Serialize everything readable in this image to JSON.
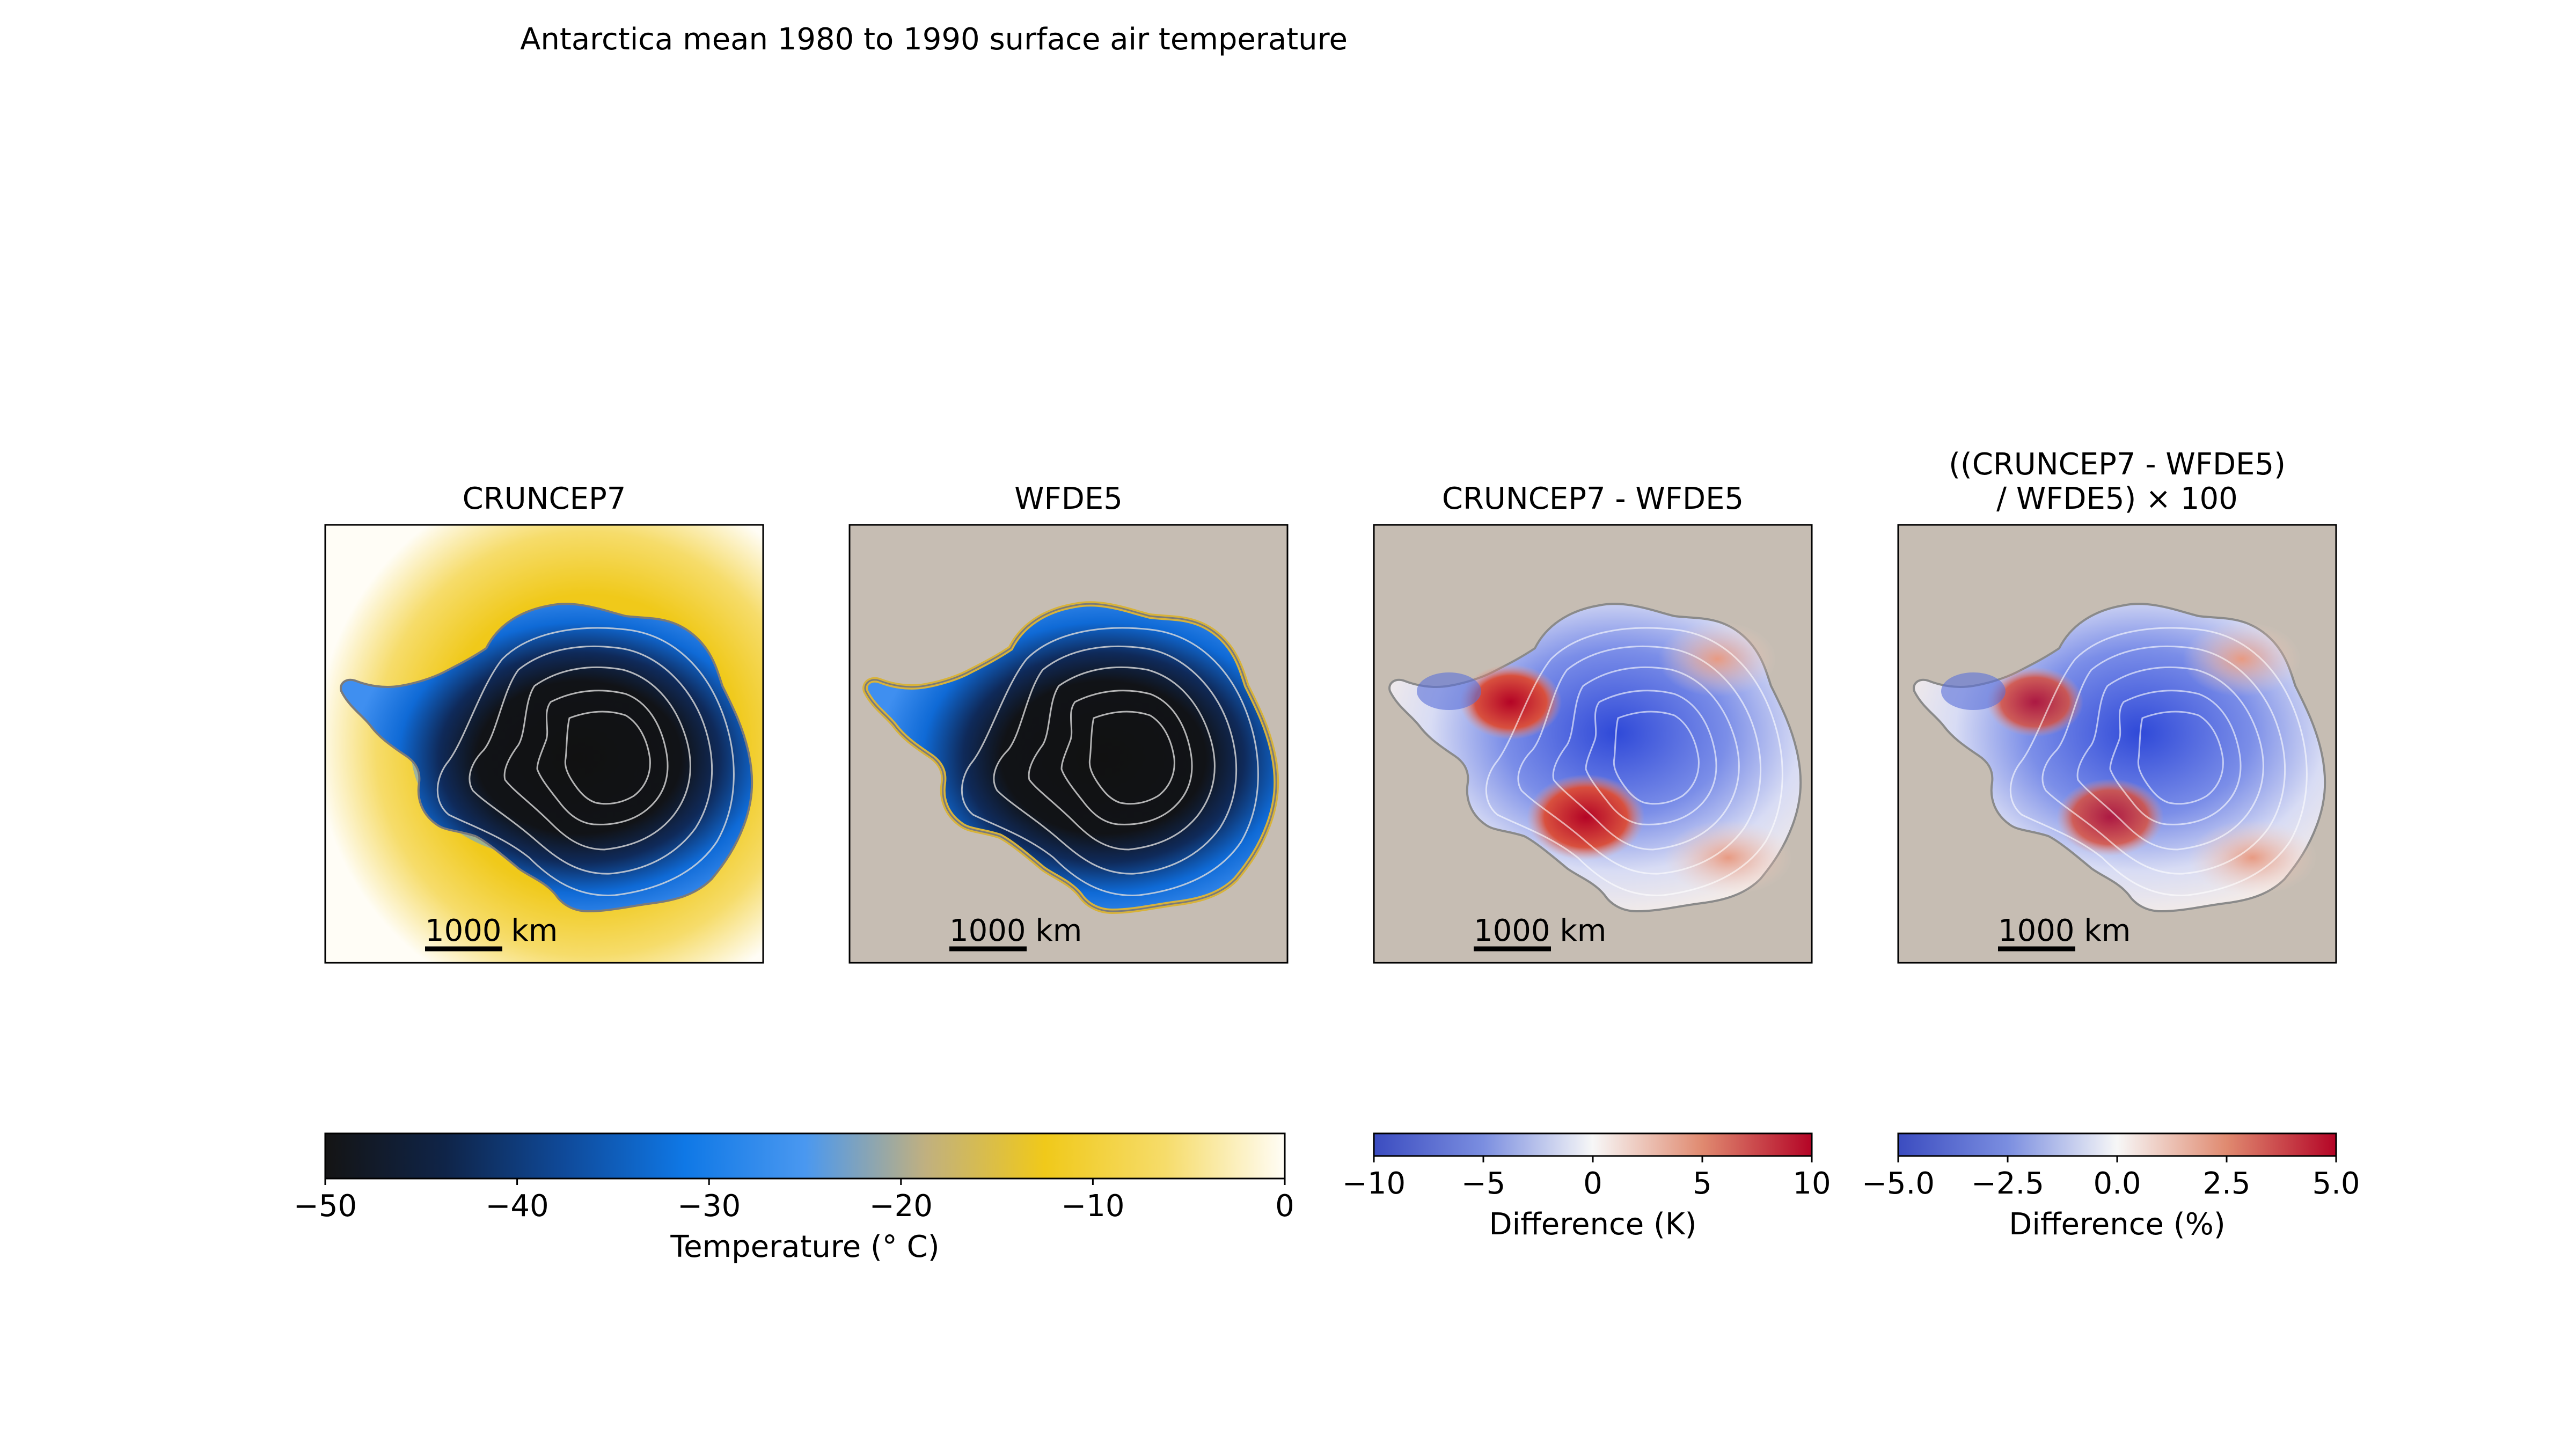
{
  "figure": {
    "title": "Antarctica mean 1980 to 1990 surface air temperature"
  },
  "panels": [
    {
      "id": "cruncep7",
      "title_lines": [
        "CRUNCEP7"
      ],
      "scalebar_label": "1000 km",
      "background": "#fbf8f0",
      "style": "temp-cruncep"
    },
    {
      "id": "wfde5",
      "title_lines": [
        "WFDE5"
      ],
      "scalebar_label": "1000 km",
      "background": "#c6bdb3",
      "style": "temp-wfde"
    },
    {
      "id": "diff",
      "title_lines": [
        "CRUNCEP7 - WFDE5"
      ],
      "scalebar_label": "1000 km",
      "background": "#c6bdb3",
      "style": "diff"
    },
    {
      "id": "pct",
      "title_lines": [
        "((CRUNCEP7 - WFDE5)",
        "/ WFDE5) × 100"
      ],
      "scalebar_label": "1000 km",
      "background": "#c6bdb3",
      "style": "pct"
    }
  ],
  "colorbars": [
    {
      "id": "temperature",
      "label": "Temperature (° C)",
      "range": [
        -50,
        0
      ],
      "ticks": [
        -50,
        -40,
        -30,
        -20,
        -10,
        0
      ],
      "tick_labels": [
        "−50",
        "−40",
        "−30",
        "−20",
        "−10",
        "0"
      ],
      "colors": [
        "#141414",
        "#0f2448",
        "#0f4a9a",
        "#0f78e6",
        "#4a98f0",
        "#c0b080",
        "#f0c91a",
        "#f6dc6a",
        "#fffdf6"
      ]
    },
    {
      "id": "difference_k",
      "label": "Difference (K)",
      "range": [
        -10,
        10
      ],
      "ticks": [
        -10,
        -5,
        0,
        5,
        10
      ],
      "tick_labels": [
        "−10",
        "−5",
        "0",
        "5",
        "10"
      ],
      "colors": [
        "#3b4cc0",
        "#7b8ee0",
        "#f7f7f7",
        "#e08a70",
        "#b40426"
      ]
    },
    {
      "id": "difference_pct",
      "label": "Difference (%)",
      "range": [
        -5,
        5
      ],
      "ticks": [
        -5,
        -2.5,
        0,
        2.5,
        5
      ],
      "tick_labels": [
        "−5.0",
        "−2.5",
        "0.0",
        "2.5",
        "5.0"
      ],
      "colors": [
        "#3b4cc0",
        "#7b8ee0",
        "#f7f7f7",
        "#e08a70",
        "#b40426"
      ]
    }
  ]
}
